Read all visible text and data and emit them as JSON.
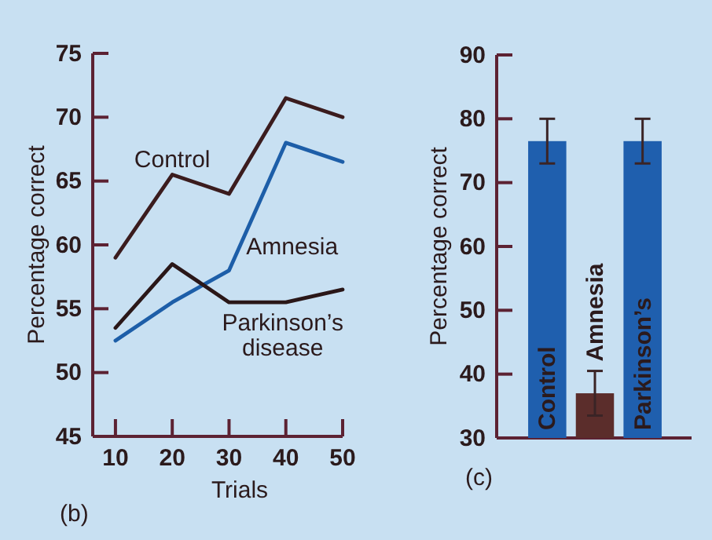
{
  "chart_data": [
    {
      "type": "line",
      "xlabel": "Trials",
      "ylabel": "Percentage correct",
      "x": [
        10,
        20,
        30,
        40,
        50
      ],
      "xlim": [
        6,
        50
      ],
      "xticks": [
        10,
        20,
        30,
        40,
        50
      ],
      "ylim": [
        45,
        75
      ],
      "yticks": [
        45,
        50,
        55,
        60,
        65,
        70,
        75
      ],
      "series": [
        {
          "name": "Control",
          "color": "#3b1c1e",
          "values": [
            59,
            65.5,
            64,
            71.5,
            70
          ]
        },
        {
          "name": "Amnesia",
          "color": "#1d5ea8",
          "values": [
            52.5,
            55.5,
            58,
            68,
            66.5
          ]
        },
        {
          "name": "Parkinson’s disease",
          "color": "#2a1718",
          "values": [
            53.5,
            58.5,
            55.5,
            55.5,
            56.5
          ]
        }
      ],
      "annotations": [
        "(b)"
      ]
    },
    {
      "type": "bar",
      "ylabel": "Percentage correct",
      "categories": [
        "Control",
        "Amnesia",
        "Parkinson’s"
      ],
      "values": [
        76.5,
        37,
        76.5
      ],
      "colors": [
        "#1f5fae",
        "#5b2d2b",
        "#1f5fae"
      ],
      "errors": [
        3.5,
        3.5,
        3.5
      ],
      "ylim": [
        30,
        90
      ],
      "yticks": [
        30,
        40,
        50,
        60,
        70,
        80,
        90
      ],
      "annotations": [
        "(c)"
      ]
    }
  ]
}
